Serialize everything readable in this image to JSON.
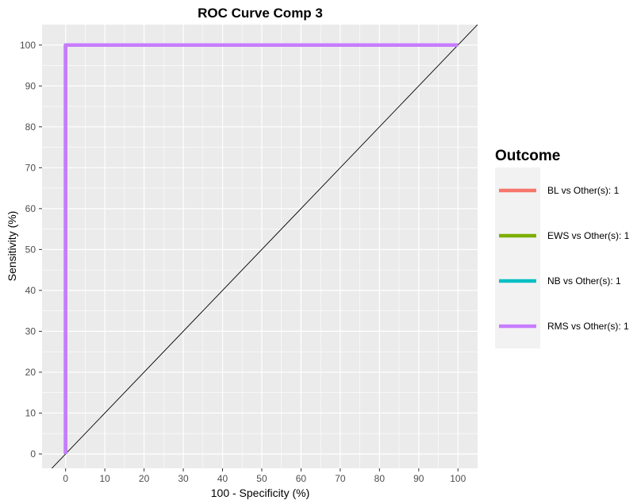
{
  "chart_data": {
    "type": "line",
    "title": "ROC Curve Comp 3",
    "xlabel": "100 - Specificity (%)",
    "ylabel": "Sensitivity (%)",
    "xlim": [
      -6,
      105
    ],
    "ylim": [
      -3.5,
      105
    ],
    "xticks": [
      0,
      10,
      20,
      30,
      40,
      50,
      60,
      70,
      80,
      90,
      100
    ],
    "yticks": [
      0,
      10,
      20,
      30,
      40,
      50,
      60,
      70,
      80,
      90,
      100
    ],
    "grid": true,
    "legend_position": "right",
    "legend_title": "Outcome",
    "series": [
      {
        "name": "BL vs Other(s): 1",
        "color": "#F8766D",
        "x": [
          0,
          0,
          100
        ],
        "y": [
          0,
          100,
          100
        ]
      },
      {
        "name": "EWS vs Other(s): 1",
        "color": "#7CAE00",
        "x": [
          0,
          0,
          100
        ],
        "y": [
          0,
          100,
          100
        ]
      },
      {
        "name": "NB vs Other(s): 1",
        "color": "#00BFC4",
        "x": [
          0,
          0,
          100
        ],
        "y": [
          0,
          100,
          100
        ]
      },
      {
        "name": "RMS vs Other(s): 1",
        "color": "#C77CFF",
        "x": [
          0,
          0,
          100
        ],
        "y": [
          0,
          100,
          100
        ]
      }
    ],
    "reference_line": {
      "x": [
        -10,
        110
      ],
      "y": [
        -10,
        110
      ],
      "color": "#000000"
    }
  }
}
